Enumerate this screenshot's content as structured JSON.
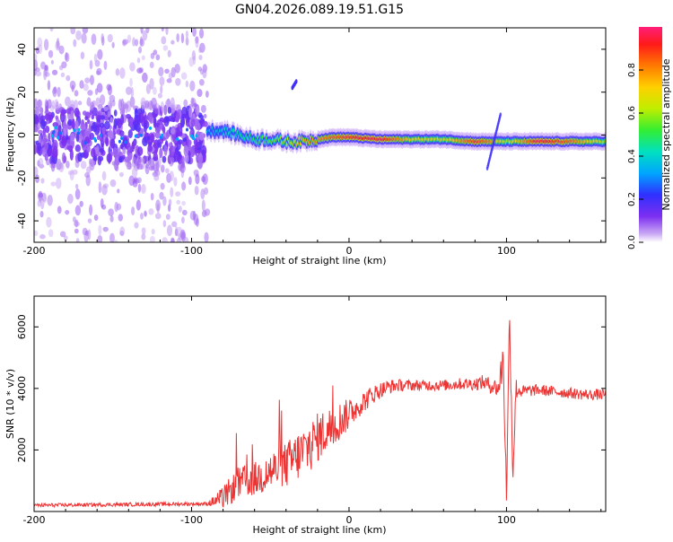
{
  "title": "GN04.2026.089.19.51.G15",
  "colors": {
    "signal": "#ee3333",
    "speckle": "#8f3df0",
    "axis": "#000000"
  },
  "chart_data": [
    {
      "type": "heatmap",
      "name": "spectrogram",
      "xlabel": "Height of straight line (km)",
      "ylabel": "Frequency (Hz)",
      "xlim": [
        -200,
        163
      ],
      "ylim": [
        -50,
        50
      ],
      "xticks": [
        -200,
        -100,
        0,
        100
      ],
      "xtick_labels": [
        "-200",
        "-100",
        "0",
        "100"
      ],
      "yticks": [
        -40,
        -20,
        0,
        20,
        40
      ],
      "ytick_labels": [
        "-40",
        "-20",
        "0",
        "20",
        "40"
      ],
      "colorbar": {
        "label": "Normalized spectral amplitude",
        "range": [
          0,
          1
        ],
        "ticks": [
          0.0,
          0.2,
          0.4,
          0.6,
          0.8
        ],
        "tick_labels": [
          "0.0",
          "0.2",
          "0.4",
          "0.6",
          "0.8"
        ]
      },
      "ridge": {
        "x": [
          -90,
          -80,
          -70,
          -60,
          -50,
          -40,
          -30,
          -20,
          -10,
          0,
          20,
          40,
          60,
          80,
          90,
          100,
          120,
          140,
          163
        ],
        "freq": [
          2,
          2,
          0,
          -2,
          -2,
          -3,
          -3,
          -2,
          -1,
          -1,
          -2,
          -2,
          -2,
          -3,
          -3,
          -3,
          -3,
          -3,
          -3
        ],
        "amplitude": [
          0.35,
          0.4,
          0.45,
          0.5,
          0.55,
          0.6,
          0.75,
          0.8,
          0.85,
          0.9,
          0.95,
          0.7,
          0.65,
          0.9,
          0.8,
          0.6,
          0.95,
          0.85,
          0.6
        ]
      },
      "noise_region": {
        "x_from": -200,
        "x_to": -90,
        "freq_spread": 50
      }
    },
    {
      "type": "line",
      "name": "snr",
      "xlabel": "Height of straight line (km)",
      "ylabel": "SNR (10 * v/v)",
      "xlim": [
        -200,
        163
      ],
      "ylim": [
        0,
        7000
      ],
      "xticks": [
        -200,
        -100,
        0,
        100
      ],
      "xtick_labels": [
        "-200",
        "-100",
        "0",
        "100"
      ],
      "yticks": [
        2000,
        4000,
        6000
      ],
      "ytick_labels": [
        "2000",
        "4000",
        "6000"
      ],
      "series": [
        {
          "name": "SNR",
          "x": [
            -200,
            -90,
            -80,
            -75,
            -70,
            -65,
            -60,
            -55,
            -50,
            -45,
            -40,
            -35,
            -30,
            -25,
            -20,
            -15,
            -10,
            -5,
            0,
            5,
            10,
            15,
            20,
            25,
            30,
            40,
            50,
            60,
            70,
            80,
            85,
            90,
            95,
            98,
            100,
            102,
            104,
            106,
            110,
            120,
            130,
            140,
            150,
            163
          ],
          "y": [
            200,
            250,
            450,
            700,
            900,
            1000,
            1050,
            1150,
            1300,
            1400,
            1500,
            1700,
            1900,
            2100,
            2400,
            2600,
            2750,
            3000,
            3150,
            3400,
            3600,
            3800,
            3950,
            4050,
            4100,
            4100,
            4100,
            4100,
            4150,
            4150,
            4200,
            4100,
            4000,
            5000,
            500,
            6500,
            1200,
            4000,
            3900,
            3950,
            3900,
            3850,
            3800,
            3800
          ],
          "band": [
            0,
            0,
            300,
            400,
            450,
            500,
            500,
            550,
            600,
            650,
            700,
            750,
            800,
            800,
            750,
            700,
            650,
            550,
            450,
            350,
            300,
            250,
            200,
            180,
            150,
            120,
            120,
            120,
            130,
            150,
            180,
            200,
            250,
            800,
            400,
            500,
            500,
            300,
            150,
            120,
            120,
            120,
            120,
            120
          ]
        }
      ]
    }
  ]
}
